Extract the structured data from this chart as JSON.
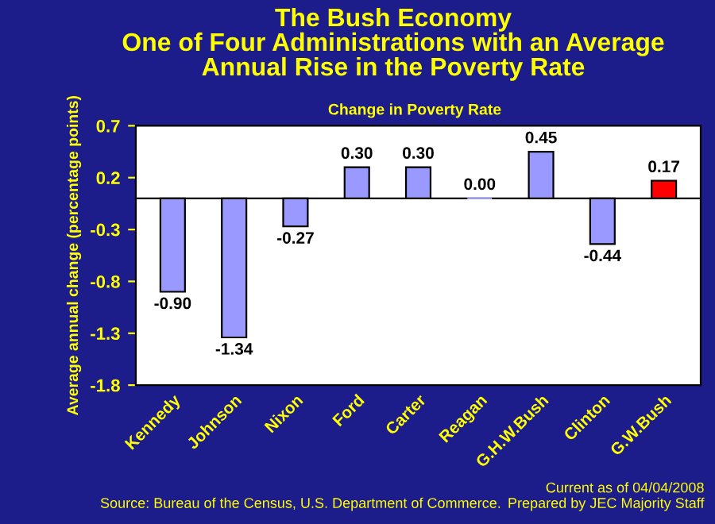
{
  "chart_data": {
    "type": "bar",
    "title": "The Bush Economy\nOne of Four Administrations with an Average\nAnnual Rise in the Poverty Rate",
    "subtitle": "Change in Poverty Rate",
    "ylabel": "Average annual change (percentage points)",
    "categories": [
      "Kennedy",
      "Johnson",
      "Nixon",
      "Ford",
      "Carter",
      "Reagan",
      "G.H.W.Bush",
      "Clinton",
      "G.W.Bush"
    ],
    "values": [
      -0.9,
      -1.34,
      -0.27,
      0.3,
      0.3,
      0.0,
      0.45,
      -0.44,
      0.17
    ],
    "colors": [
      "#9999ff",
      "#9999ff",
      "#9999ff",
      "#9999ff",
      "#9999ff",
      "#9999ff",
      "#9999ff",
      "#9999ff",
      "#ff0000"
    ],
    "value_labels": [
      "-0.90",
      "-1.34",
      "-0.27",
      "0.30",
      "0.30",
      "0.00",
      "0.45",
      "-0.44",
      "0.17"
    ],
    "ylim": [
      -1.8,
      0.7
    ],
    "yticks": [
      {
        "value": 0.7,
        "label": "0.7"
      },
      {
        "value": 0.2,
        "label": "0.2"
      },
      {
        "value": -0.3,
        "label": "-0.3"
      },
      {
        "value": -0.8,
        "label": "-0.8"
      },
      {
        "value": -1.3,
        "label": "-1.3"
      },
      {
        "value": -1.8,
        "label": "-1.8"
      }
    ],
    "grid": false,
    "legend": false,
    "annotations": [
      "Source: Bureau of the Census, U.S. Department of Commerce.",
      "Current as of 04/04/2008\nPrepared by JEC Majority Staff"
    ]
  }
}
